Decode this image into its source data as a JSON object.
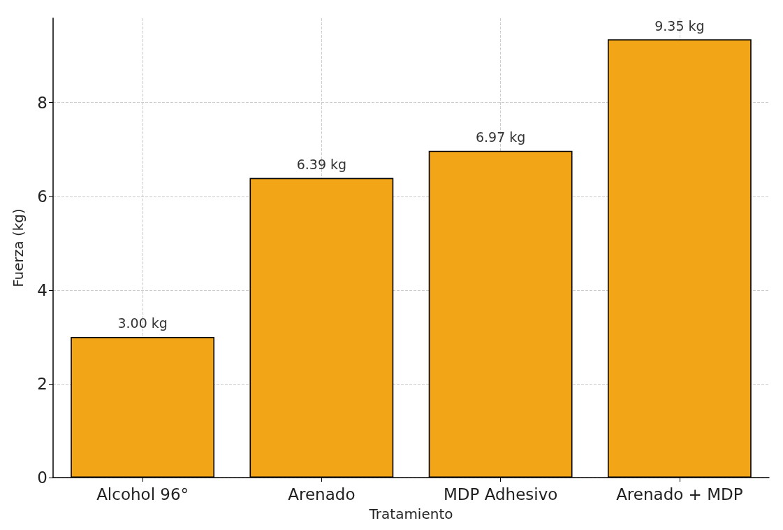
{
  "chart_data": {
    "type": "bar",
    "categories": [
      "Alcohol 96°",
      "Arenado",
      "MDP Adhesivo",
      "Arenado + MDP"
    ],
    "values": [
      3.0,
      6.39,
      6.97,
      9.35
    ],
    "value_labels": [
      "3.00 kg",
      "6.39 kg",
      "6.97 kg",
      "9.35 kg"
    ],
    "color": "#f2a516",
    "xlabel": "Tratamiento",
    "ylabel": "Fuerza (kg)",
    "ylim": [
      0,
      9.8
    ],
    "yticks": [
      0,
      2,
      4,
      6,
      8
    ],
    "grid": true
  }
}
